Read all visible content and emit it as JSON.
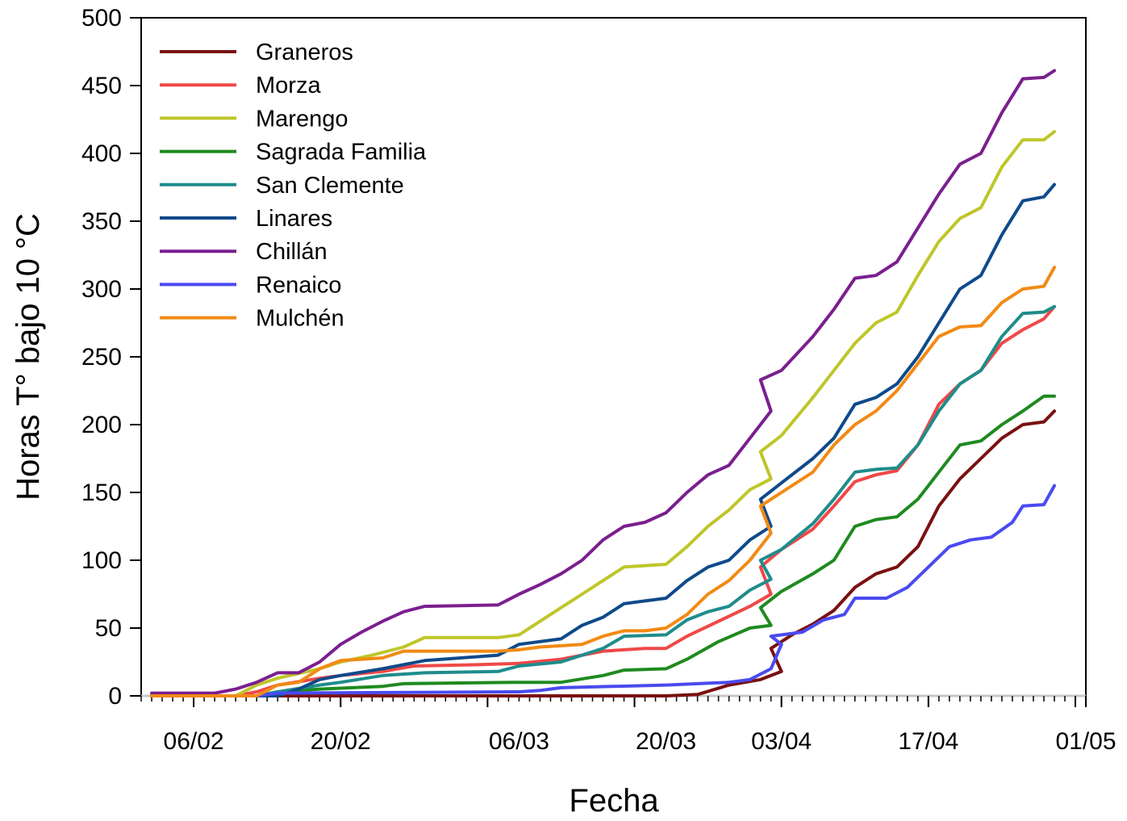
{
  "chart_data": {
    "type": "line",
    "title": "",
    "xlabel": "Fecha",
    "ylabel": "Horas T° bajo 10 °C",
    "xlim": [
      "01/02",
      "01/05"
    ],
    "ylim": [
      0,
      500
    ],
    "yticks": [
      0,
      50,
      100,
      150,
      200,
      250,
      300,
      350,
      400,
      450,
      500
    ],
    "xticks": [
      "06/02",
      "20/02",
      "06/03",
      "20/03",
      "03/04",
      "17/04",
      "01/05"
    ],
    "grid": false,
    "legend": "top-left",
    "series": [
      {
        "name": "Graneros",
        "color": "#7a1010",
        "points": [
          [
            "02/02",
            0
          ],
          [
            "14/03",
            0
          ],
          [
            "20/03",
            0
          ],
          [
            "23/03",
            1
          ],
          [
            "26/03",
            8
          ],
          [
            "29/03",
            12
          ],
          [
            "31/03",
            18
          ],
          [
            "02/04",
            35
          ],
          [
            "04/04",
            45
          ],
          [
            "06/04",
            53
          ],
          [
            "08/04",
            63
          ],
          [
            "10/04",
            80
          ],
          [
            "12/04",
            90
          ],
          [
            "14/04",
            95
          ],
          [
            "16/04",
            110
          ],
          [
            "18/04",
            140
          ],
          [
            "20/04",
            160
          ],
          [
            "22/04",
            175
          ],
          [
            "24/04",
            190
          ],
          [
            "26/04",
            200
          ],
          [
            "28/04",
            202
          ],
          [
            "29/04",
            210
          ]
        ]
      },
      {
        "name": "Morza",
        "color": "#f04848",
        "points": [
          [
            "02/02",
            0
          ],
          [
            "10/02",
            0
          ],
          [
            "12/02",
            3
          ],
          [
            "14/02",
            8
          ],
          [
            "18/02",
            13
          ],
          [
            "20/02",
            15
          ],
          [
            "24/02",
            18
          ],
          [
            "27/02",
            22
          ],
          [
            "02/03",
            23
          ],
          [
            "06/03",
            24
          ],
          [
            "10/03",
            27
          ],
          [
            "14/03",
            33
          ],
          [
            "18/03",
            35
          ],
          [
            "20/03",
            35
          ],
          [
            "22/03",
            44
          ],
          [
            "25/03",
            55
          ],
          [
            "28/03",
            66
          ],
          [
            "30/03",
            75
          ],
          [
            "01/04",
            95
          ],
          [
            "03/04",
            108
          ],
          [
            "06/04",
            123
          ],
          [
            "08/04",
            140
          ],
          [
            "10/04",
            158
          ],
          [
            "12/04",
            163
          ],
          [
            "14/04",
            166
          ],
          [
            "16/04",
            185
          ],
          [
            "18/04",
            215
          ],
          [
            "20/04",
            230
          ],
          [
            "22/04",
            240
          ],
          [
            "24/04",
            260
          ],
          [
            "26/04",
            270
          ],
          [
            "28/04",
            278
          ],
          [
            "29/04",
            287
          ]
        ]
      },
      {
        "name": "Marengo",
        "color": "#bfc62a",
        "points": [
          [
            "02/02",
            0
          ],
          [
            "10/02",
            0
          ],
          [
            "12/02",
            8
          ],
          [
            "14/02",
            13
          ],
          [
            "18/02",
            20
          ],
          [
            "20/02",
            25
          ],
          [
            "23/02",
            30
          ],
          [
            "26/02",
            36
          ],
          [
            "28/02",
            43
          ],
          [
            "04/03",
            43
          ],
          [
            "06/03",
            45
          ],
          [
            "08/03",
            55
          ],
          [
            "10/03",
            65
          ],
          [
            "12/03",
            75
          ],
          [
            "14/03",
            85
          ],
          [
            "16/03",
            95
          ],
          [
            "20/03",
            97
          ],
          [
            "22/03",
            110
          ],
          [
            "24/03",
            125
          ],
          [
            "26/03",
            137
          ],
          [
            "28/03",
            152
          ],
          [
            "30/03",
            160
          ],
          [
            "01/04",
            180
          ],
          [
            "03/04",
            192
          ],
          [
            "06/04",
            220
          ],
          [
            "08/04",
            240
          ],
          [
            "10/04",
            260
          ],
          [
            "12/04",
            275
          ],
          [
            "14/04",
            283
          ],
          [
            "16/04",
            310
          ],
          [
            "18/04",
            335
          ],
          [
            "20/04",
            352
          ],
          [
            "22/04",
            360
          ],
          [
            "24/04",
            390
          ],
          [
            "26/04",
            410
          ],
          [
            "28/04",
            410
          ],
          [
            "29/04",
            416
          ]
        ]
      },
      {
        "name": "Sagrada Familia",
        "color": "#1f8a1f",
        "points": [
          [
            "02/02",
            0
          ],
          [
            "12/02",
            0
          ],
          [
            "14/02",
            3
          ],
          [
            "18/02",
            5
          ],
          [
            "24/02",
            7
          ],
          [
            "26/02",
            9
          ],
          [
            "06/03",
            10
          ],
          [
            "10/03",
            10
          ],
          [
            "14/03",
            15
          ],
          [
            "16/03",
            19
          ],
          [
            "20/03",
            20
          ],
          [
            "22/03",
            27
          ],
          [
            "25/03",
            40
          ],
          [
            "28/03",
            50
          ],
          [
            "30/03",
            52
          ],
          [
            "01/04",
            65
          ],
          [
            "03/04",
            77
          ],
          [
            "06/04",
            90
          ],
          [
            "08/04",
            100
          ],
          [
            "10/04",
            125
          ],
          [
            "12/04",
            130
          ],
          [
            "14/04",
            132
          ],
          [
            "16/04",
            145
          ],
          [
            "18/04",
            165
          ],
          [
            "20/04",
            185
          ],
          [
            "22/04",
            188
          ],
          [
            "24/04",
            200
          ],
          [
            "26/04",
            210
          ],
          [
            "28/04",
            221
          ],
          [
            "29/04",
            221
          ]
        ]
      },
      {
        "name": "San Clemente",
        "color": "#1f8c8c",
        "points": [
          [
            "02/02",
            0
          ],
          [
            "12/02",
            0
          ],
          [
            "14/02",
            3
          ],
          [
            "18/02",
            8
          ],
          [
            "20/02",
            10
          ],
          [
            "24/02",
            15
          ],
          [
            "28/02",
            17
          ],
          [
            "04/03",
            18
          ],
          [
            "06/03",
            22
          ],
          [
            "10/03",
            25
          ],
          [
            "14/03",
            35
          ],
          [
            "16/03",
            44
          ],
          [
            "20/03",
            45
          ],
          [
            "22/03",
            56
          ],
          [
            "24/03",
            62
          ],
          [
            "26/03",
            66
          ],
          [
            "28/03",
            78
          ],
          [
            "30/03",
            86
          ],
          [
            "01/04",
            100
          ],
          [
            "03/04",
            108
          ],
          [
            "06/04",
            127
          ],
          [
            "08/04",
            145
          ],
          [
            "10/04",
            165
          ],
          [
            "12/04",
            167
          ],
          [
            "14/04",
            168
          ],
          [
            "16/04",
            185
          ],
          [
            "18/04",
            210
          ],
          [
            "20/04",
            230
          ],
          [
            "22/04",
            240
          ],
          [
            "24/04",
            265
          ],
          [
            "26/04",
            282
          ],
          [
            "28/04",
            283
          ],
          [
            "29/04",
            287
          ]
        ]
      },
      {
        "name": "Linares",
        "color": "#0f4a8a",
        "points": [
          [
            "02/02",
            0
          ],
          [
            "14/02",
            0
          ],
          [
            "16/02",
            5
          ],
          [
            "18/02",
            12
          ],
          [
            "20/02",
            15
          ],
          [
            "24/02",
            20
          ],
          [
            "28/02",
            26
          ],
          [
            "04/03",
            30
          ],
          [
            "06/03",
            38
          ],
          [
            "10/03",
            42
          ],
          [
            "12/03",
            52
          ],
          [
            "14/03",
            58
          ],
          [
            "16/03",
            68
          ],
          [
            "18/03",
            70
          ],
          [
            "20/03",
            72
          ],
          [
            "22/03",
            85
          ],
          [
            "24/03",
            95
          ],
          [
            "26/03",
            100
          ],
          [
            "28/03",
            115
          ],
          [
            "30/03",
            125
          ],
          [
            "01/04",
            145
          ],
          [
            "03/04",
            157
          ],
          [
            "06/04",
            175
          ],
          [
            "08/04",
            190
          ],
          [
            "10/04",
            215
          ],
          [
            "12/04",
            220
          ],
          [
            "14/04",
            230
          ],
          [
            "16/04",
            250
          ],
          [
            "18/04",
            275
          ],
          [
            "20/04",
            300
          ],
          [
            "22/04",
            310
          ],
          [
            "24/04",
            340
          ],
          [
            "26/04",
            365
          ],
          [
            "28/04",
            368
          ],
          [
            "29/04",
            377
          ]
        ]
      },
      {
        "name": "Chillán",
        "color": "#7a1f8f",
        "points": [
          [
            "02/02",
            2
          ],
          [
            "08/02",
            2
          ],
          [
            "10/02",
            5
          ],
          [
            "12/02",
            10
          ],
          [
            "14/02",
            17
          ],
          [
            "16/02",
            17
          ],
          [
            "18/02",
            25
          ],
          [
            "20/02",
            38
          ],
          [
            "22/02",
            47
          ],
          [
            "24/02",
            55
          ],
          [
            "26/02",
            62
          ],
          [
            "28/02",
            66
          ],
          [
            "04/03",
            67
          ],
          [
            "06/03",
            75
          ],
          [
            "08/03",
            82
          ],
          [
            "10/03",
            90
          ],
          [
            "12/03",
            100
          ],
          [
            "14/03",
            115
          ],
          [
            "16/03",
            125
          ],
          [
            "18/03",
            128
          ],
          [
            "20/03",
            135
          ],
          [
            "22/03",
            150
          ],
          [
            "24/03",
            163
          ],
          [
            "26/03",
            170
          ],
          [
            "28/03",
            190
          ],
          [
            "30/03",
            210
          ],
          [
            "01/04",
            233
          ],
          [
            "03/04",
            240
          ],
          [
            "06/04",
            265
          ],
          [
            "08/04",
            285
          ],
          [
            "10/04",
            308
          ],
          [
            "12/04",
            310
          ],
          [
            "14/04",
            320
          ],
          [
            "16/04",
            345
          ],
          [
            "18/04",
            370
          ],
          [
            "20/04",
            392
          ],
          [
            "22/04",
            400
          ],
          [
            "24/04",
            430
          ],
          [
            "26/04",
            455
          ],
          [
            "28/04",
            456
          ],
          [
            "29/04",
            461
          ]
        ]
      },
      {
        "name": "Renaico",
        "color": "#4a4af0",
        "points": [
          [
            "02/02",
            0
          ],
          [
            "12/02",
            0
          ],
          [
            "14/02",
            2
          ],
          [
            "06/03",
            3
          ],
          [
            "08/03",
            4
          ],
          [
            "10/03",
            6
          ],
          [
            "20/03",
            8
          ],
          [
            "26/03",
            10
          ],
          [
            "28/03",
            12
          ],
          [
            "30/03",
            20
          ],
          [
            "31/03",
            38
          ],
          [
            "02/04",
            44
          ],
          [
            "05/04",
            47
          ],
          [
            "07/04",
            56
          ],
          [
            "09/04",
            60
          ],
          [
            "10/04",
            72
          ],
          [
            "13/04",
            72
          ],
          [
            "15/04",
            80
          ],
          [
            "17/04",
            95
          ],
          [
            "19/04",
            110
          ],
          [
            "21/04",
            115
          ],
          [
            "23/04",
            117
          ],
          [
            "25/04",
            128
          ],
          [
            "26/04",
            140
          ],
          [
            "28/04",
            141
          ],
          [
            "29/04",
            155
          ]
        ]
      },
      {
        "name": "Mulchén",
        "color": "#f28a14",
        "points": [
          [
            "02/02",
            0
          ],
          [
            "12/02",
            0
          ],
          [
            "14/02",
            8
          ],
          [
            "16/02",
            10
          ],
          [
            "18/02",
            20
          ],
          [
            "20/02",
            26
          ],
          [
            "24/02",
            28
          ],
          [
            "26/02",
            33
          ],
          [
            "04/03",
            33
          ],
          [
            "06/03",
            34
          ],
          [
            "08/03",
            36
          ],
          [
            "12/03",
            38
          ],
          [
            "14/03",
            44
          ],
          [
            "16/03",
            48
          ],
          [
            "18/03",
            48
          ],
          [
            "20/03",
            50
          ],
          [
            "22/03",
            60
          ],
          [
            "24/03",
            75
          ],
          [
            "26/03",
            85
          ],
          [
            "28/03",
            100
          ],
          [
            "30/03",
            120
          ],
          [
            "01/04",
            140
          ],
          [
            "03/04",
            150
          ],
          [
            "06/04",
            165
          ],
          [
            "08/04",
            185
          ],
          [
            "10/04",
            200
          ],
          [
            "12/04",
            210
          ],
          [
            "14/04",
            225
          ],
          [
            "16/04",
            245
          ],
          [
            "18/04",
            265
          ],
          [
            "20/04",
            272
          ],
          [
            "22/04",
            273
          ],
          [
            "24/04",
            290
          ],
          [
            "26/04",
            300
          ],
          [
            "28/04",
            302
          ],
          [
            "29/04",
            316
          ]
        ]
      }
    ]
  }
}
